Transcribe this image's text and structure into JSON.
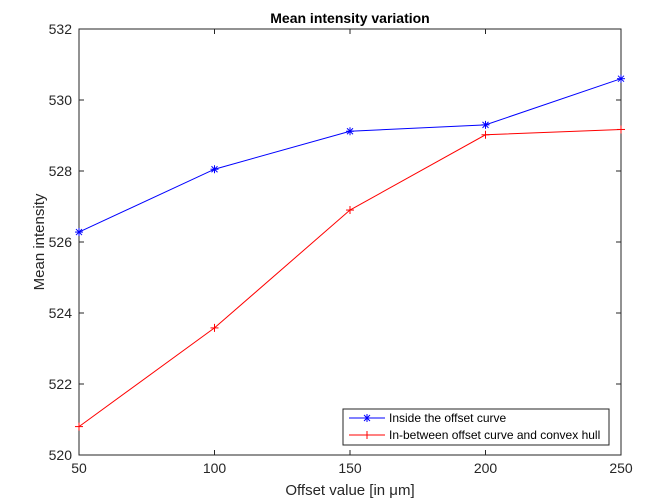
{
  "chart_data": {
    "type": "line",
    "title": "Mean intensity variation",
    "xlabel": "Offset value [in μm]",
    "ylabel": "Mean intensity",
    "x": [
      50,
      100,
      150,
      200,
      250
    ],
    "xlim": [
      50,
      250
    ],
    "ylim": [
      520,
      532
    ],
    "xticks": [
      "50",
      "100",
      "150",
      "200",
      "250"
    ],
    "yticks": [
      "520",
      "522",
      "524",
      "526",
      "528",
      "530",
      "532"
    ],
    "grid": false,
    "legend_position": "bottom-right",
    "series": [
      {
        "name": "Inside the offset curve",
        "color": "#0000ff",
        "marker": "asterisk",
        "values": [
          526.28,
          528.05,
          529.12,
          529.3,
          530.6
        ]
      },
      {
        "name": "In-between offset curve and convex hull",
        "color": "#ff0000",
        "marker": "plus",
        "values": [
          520.8,
          523.58,
          526.9,
          529.02,
          529.17
        ]
      }
    ]
  }
}
